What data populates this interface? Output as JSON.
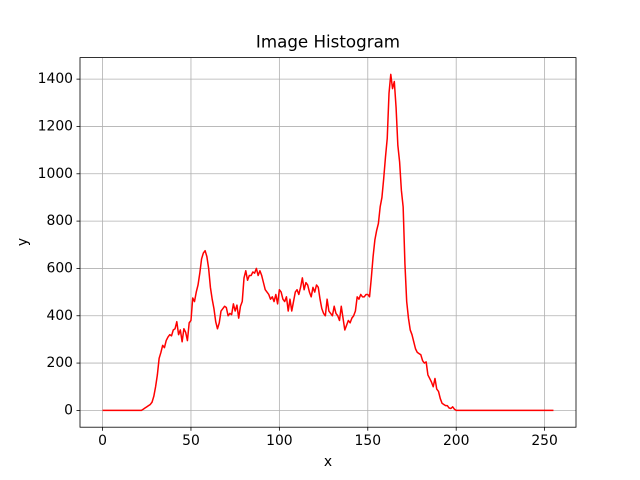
{
  "chart_data": {
    "type": "line",
    "title": "Image Histogram",
    "x_label": "x",
    "y_label": "y",
    "color": "#ff0000",
    "grid": true,
    "xlim": [
      -12.75,
      267.75
    ],
    "ylim": [
      -71,
      1491
    ],
    "xticks": [
      0,
      50,
      100,
      150,
      200,
      250
    ],
    "yticks": [
      0,
      200,
      400,
      600,
      800,
      1000,
      1200,
      1400
    ],
    "x": [
      0,
      1,
      2,
      3,
      4,
      5,
      6,
      7,
      8,
      9,
      10,
      11,
      12,
      13,
      14,
      15,
      16,
      17,
      18,
      19,
      20,
      21,
      22,
      23,
      24,
      25,
      26,
      27,
      28,
      29,
      30,
      31,
      32,
      33,
      34,
      35,
      36,
      37,
      38,
      39,
      40,
      41,
      42,
      43,
      44,
      45,
      46,
      47,
      48,
      49,
      50,
      51,
      52,
      53,
      54,
      55,
      56,
      57,
      58,
      59,
      60,
      61,
      62,
      63,
      64,
      65,
      66,
      67,
      68,
      69,
      70,
      71,
      72,
      73,
      74,
      75,
      76,
      77,
      78,
      79,
      80,
      81,
      82,
      83,
      84,
      85,
      86,
      87,
      88,
      89,
      90,
      91,
      92,
      93,
      94,
      95,
      96,
      97,
      98,
      99,
      100,
      101,
      102,
      103,
      104,
      105,
      106,
      107,
      108,
      109,
      110,
      111,
      112,
      113,
      114,
      115,
      116,
      117,
      118,
      119,
      120,
      121,
      122,
      123,
      124,
      125,
      126,
      127,
      128,
      129,
      130,
      131,
      132,
      133,
      134,
      135,
      136,
      137,
      138,
      139,
      140,
      141,
      142,
      143,
      144,
      145,
      146,
      147,
      148,
      149,
      150,
      151,
      152,
      153,
      154,
      155,
      156,
      157,
      158,
      159,
      160,
      161,
      162,
      163,
      164,
      165,
      166,
      167,
      168,
      169,
      170,
      171,
      172,
      173,
      174,
      175,
      176,
      177,
      178,
      179,
      180,
      181,
      182,
      183,
      184,
      185,
      186,
      187,
      188,
      189,
      190,
      191,
      192,
      193,
      194,
      195,
      196,
      197,
      198,
      199,
      200,
      201,
      202,
      203,
      204,
      205,
      206,
      207,
      208,
      209,
      210,
      211,
      212,
      213,
      214,
      215,
      216,
      217,
      218,
      219,
      220,
      221,
      222,
      223,
      224,
      225,
      226,
      227,
      228,
      229,
      230,
      231,
      232,
      233,
      234,
      235,
      236,
      237,
      238,
      239,
      240,
      241,
      242,
      243,
      244,
      245,
      246,
      247,
      248,
      249,
      250,
      251,
      252,
      253,
      254,
      255
    ],
    "values": [
      0,
      0,
      0,
      0,
      0,
      0,
      0,
      0,
      0,
      0,
      0,
      0,
      0,
      0,
      0,
      0,
      0,
      0,
      0,
      0,
      0,
      0,
      0,
      5,
      10,
      15,
      20,
      25,
      35,
      60,
      100,
      150,
      220,
      245,
      275,
      265,
      295,
      310,
      320,
      315,
      340,
      345,
      375,
      320,
      340,
      290,
      345,
      330,
      295,
      370,
      380,
      475,
      460,
      500,
      530,
      580,
      640,
      665,
      675,
      650,
      600,
      520,
      470,
      430,
      375,
      345,
      370,
      420,
      430,
      440,
      435,
      400,
      410,
      405,
      450,
      420,
      445,
      390,
      440,
      460,
      560,
      590,
      550,
      570,
      570,
      585,
      580,
      600,
      570,
      590,
      570,
      540,
      510,
      500,
      490,
      470,
      480,
      460,
      490,
      450,
      510,
      500,
      470,
      460,
      480,
      420,
      470,
      420,
      460,
      500,
      510,
      490,
      520,
      560,
      510,
      540,
      530,
      500,
      480,
      520,
      500,
      530,
      520,
      470,
      430,
      410,
      400,
      470,
      420,
      410,
      400,
      440,
      410,
      400,
      380,
      440,
      390,
      340,
      360,
      380,
      370,
      390,
      400,
      420,
      480,
      470,
      490,
      480,
      480,
      490,
      490,
      480,
      560,
      650,
      720,
      760,
      790,
      860,
      900,
      980,
      1070,
      1150,
      1340,
      1420,
      1360,
      1390,
      1280,
      1120,
      1050,
      930,
      860,
      620,
      460,
      390,
      340,
      320,
      290,
      260,
      245,
      240,
      235,
      210,
      200,
      205,
      150,
      135,
      120,
      100,
      135,
      90,
      80,
      50,
      30,
      25,
      20,
      20,
      10,
      8,
      15,
      5,
      0,
      0,
      0,
      0,
      0,
      0,
      0,
      0,
      0,
      0,
      0,
      0,
      0,
      0,
      0,
      0,
      0,
      0,
      0,
      0,
      0,
      0,
      0,
      0,
      0,
      0,
      0,
      0,
      0,
      0,
      0,
      0,
      0,
      0,
      0,
      0,
      0,
      0,
      0,
      0,
      0,
      0,
      0,
      0,
      0,
      0,
      0,
      0,
      0,
      0,
      0,
      0,
      0,
      0,
      0,
      0
    ]
  }
}
